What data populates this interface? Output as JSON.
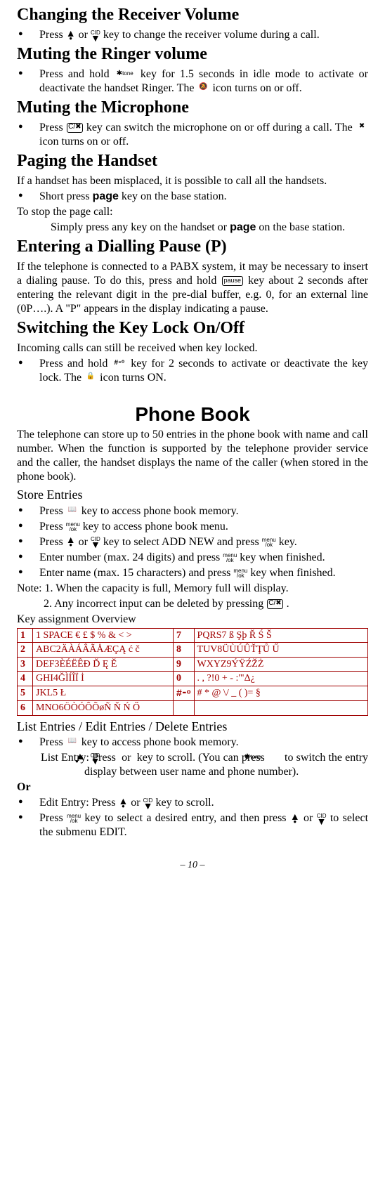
{
  "sections": {
    "recv_vol": {
      "title": "Changing the Receiver Volume",
      "item": [
        "Press ",
        " or ",
        " key to change the receiver volume during a call."
      ]
    },
    "mute_ring": {
      "title": "Muting the Ringer volume",
      "item": [
        "Press and hold ",
        " key for 1.5 seconds in idle mode to activate or deactivate the handset Ringer. The ",
        " icon turns on or off."
      ]
    },
    "mute_mic": {
      "title": "Muting the Microphone",
      "item": [
        "Press ",
        " key can switch the microphone on or off during a call. The ",
        " icon turns on or off."
      ]
    },
    "paging": {
      "title": "Paging the Handset",
      "p1": "If a handset has been misplaced, it is possible to call all the handsets.",
      "item": [
        "Short press ",
        "page",
        " key on the base station."
      ],
      "p2": "To stop the page call:",
      "p3a": "Simply press any key on the handset or ",
      "p3b": "page",
      "p3c": " on the base station."
    },
    "pause": {
      "title": "Entering a Dialling Pause (P)",
      "p": [
        "If the telephone is connected to a PABX system, it may be necessary to insert a dialing pause. To do this, press and hold ",
        " key about 2 seconds after entering the relevant digit in the pre-dial buffer, e.g. 0, for an external line (0P….). A \"P\" appears in the display indicating a pause."
      ]
    },
    "keylock": {
      "title": "Switching the Key Lock On/Off",
      "p1": "Incoming calls can still be received when key locked.",
      "item": [
        "Press and hold ",
        " key for 2 seconds to activate or deactivate the key lock. The ",
        " icon turns ON."
      ]
    },
    "phonebook": {
      "title": "Phone Book",
      "intro": "The telephone can store up to 50 entries in the phone book with name and call number. When the function is supported by the telephone provider service and the caller, the handset displays the name of the caller (when stored in the phone book).",
      "sub1": "Store Entries",
      "i1": [
        "Press ",
        " key to access phone book memory."
      ],
      "i2": [
        "Press ",
        " key to access phone book menu."
      ],
      "i3": [
        "Press ",
        " or ",
        " key to select ADD NEW and press ",
        " key."
      ],
      "i4": [
        "Enter number (max. 24 digits) and press ",
        " key when finished."
      ],
      "i5": [
        "Enter name (max. 15 characters) and press ",
        " key when finished."
      ],
      "note1": "Note: 1. When the capacity is full, Memory full will display.",
      "note2": [
        "2. Any incorrect input can be deleted by pressing ",
        "."
      ],
      "sub_overview": "Key assignment Overview",
      "table": {
        "rows": [
          [
            "1",
            "1 SPACE € £ $ % & < >",
            "7",
            "PQRS7 ß Şþ Ř Ś Š"
          ],
          [
            "2",
            "ABC2ÄÀÁÂÃÅÆÇĄ ć č",
            "8",
            "TUV8ÜÙÚÛŤŢŮ Ű"
          ],
          [
            "3",
            "DEF3ÈÉËÊÐ Ď Ę Ě",
            "9",
            "WXYZ9ÝŸŹŽŻ"
          ],
          [
            "4",
            "GHI4ĞÌÍÎÏ İ",
            "0",
            ". , ?!0 + - :'\"Δ¿"
          ],
          [
            "5",
            "JKL5 Ł",
            "",
            "# * @ \\/ _ ( )= §"
          ],
          [
            "6",
            "MNO6ÖÒÓÔÕøÑ Ň Ń Ő",
            "",
            ""
          ]
        ]
      },
      "sub2": "List Entries / Edit Entries / Delete Entries",
      "i6": [
        "Press ",
        " key to access phone book memory."
      ],
      "p_list": [
        "List Entry: Press ",
        " or ",
        " key to scroll. (You can press ",
        " to switch the entry display between user name and phone number)."
      ],
      "or": "Or",
      "i7": [
        "Edit Entry: Press ",
        " or ",
        "  key to scroll."
      ],
      "i8": [
        "Press ",
        " key to select a desired entry, and then press ",
        " or ",
        " to select the submenu EDIT."
      ]
    },
    "pagenum": "– 10 –"
  },
  "icons": {
    "up_cid": "CID",
    "down_cid": "CID",
    "star_tone": "✱",
    "tone_label": "tone",
    "mute_ringer": "🔕",
    "c_cancel": "C/✖",
    "mic_off": "✖",
    "pause": "pause",
    "hash_lock": "#⁃ᵒ",
    "lock": "🔒",
    "book": "📖",
    "menu_ok_top": "menu",
    "menu_ok_bot": "/ok",
    "hash_mute": "#⁃ᵒ"
  },
  "colors": {
    "table_border": "#a00000",
    "table_text": "#a00000"
  }
}
